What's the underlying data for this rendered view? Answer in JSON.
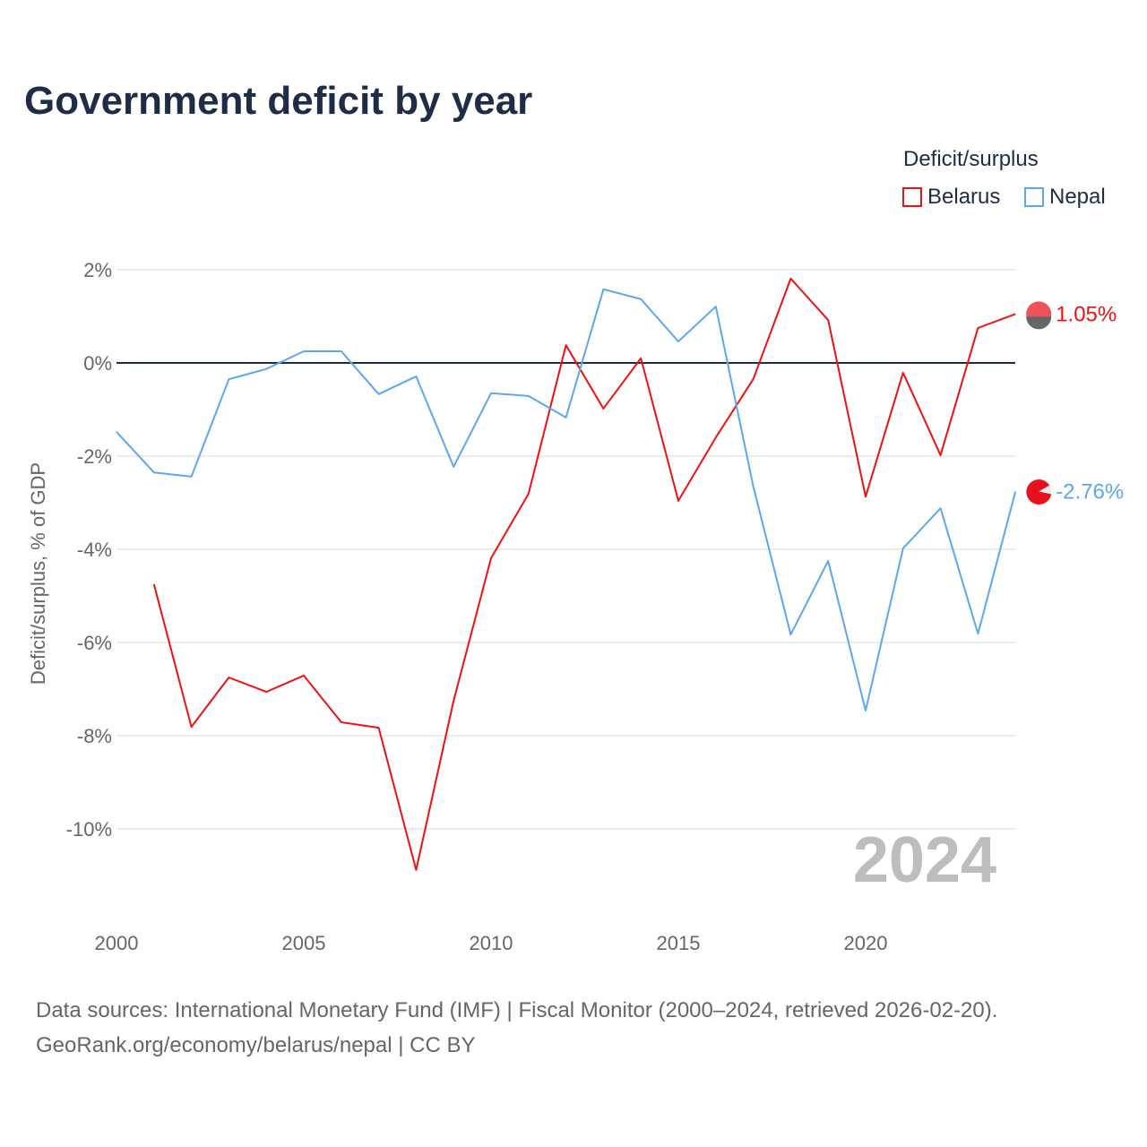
{
  "chart_data": {
    "type": "line",
    "title": "Government deficit by year",
    "ylabel": "Deficit/surplus, % of GDP",
    "xlabel": "",
    "xlim": [
      2000,
      2024
    ],
    "ylim": [
      -11.5,
      2.5
    ],
    "x_ticks": [
      2000,
      2005,
      2010,
      2015,
      2020
    ],
    "y_ticks": [
      2,
      0,
      -2,
      -4,
      -6,
      -8,
      -10
    ],
    "y_tick_labels": [
      "2%",
      "0%",
      "-2%",
      "-4%",
      "-6%",
      "-8%",
      "-10%"
    ],
    "legend_title": "Deficit/surplus",
    "legend_placement": "top-right",
    "year_watermark": "2024",
    "series": [
      {
        "name": "Belarus",
        "color": "#ee1111",
        "end_label": "1.05%",
        "x": [
          2001,
          2002,
          2003,
          2004,
          2005,
          2006,
          2007,
          2008,
          2009,
          2010,
          2011,
          2012,
          2013,
          2014,
          2015,
          2016,
          2017,
          2018,
          2019,
          2020,
          2021,
          2022,
          2023,
          2024
        ],
        "values": [
          -4.75,
          -7.81,
          -6.75,
          -7.06,
          -6.71,
          -7.71,
          -7.83,
          -10.88,
          -7.25,
          -4.19,
          -2.81,
          0.38,
          -0.98,
          0.1,
          -2.96,
          -1.6,
          -0.35,
          1.81,
          0.92,
          -2.87,
          -0.21,
          -1.98,
          0.75,
          1.05
        ]
      },
      {
        "name": "Nepal",
        "color": "#5ea6ee",
        "end_label": "-2.76%",
        "x": [
          2000,
          2001,
          2002,
          2003,
          2004,
          2005,
          2006,
          2007,
          2008,
          2009,
          2010,
          2011,
          2012,
          2013,
          2014,
          2015,
          2016,
          2017,
          2018,
          2019,
          2020,
          2021,
          2022,
          2023,
          2024
        ],
        "values": [
          -1.48,
          -2.35,
          -2.44,
          -0.35,
          -0.13,
          0.25,
          0.25,
          -0.67,
          -0.29,
          -2.23,
          -0.65,
          -0.71,
          -1.17,
          1.58,
          1.37,
          0.46,
          1.21,
          -2.65,
          -5.83,
          -4.25,
          -7.46,
          -3.98,
          -3.12,
          -5.81,
          -2.76
        ]
      }
    ]
  },
  "source": {
    "line1": "Data sources: International Monetary Fund (IMF) | Fiscal Monitor (2000–2024, retrieved 2026-02-20).",
    "line2": "GeoRank.org/economy/belarus/nepal | CC BY"
  }
}
